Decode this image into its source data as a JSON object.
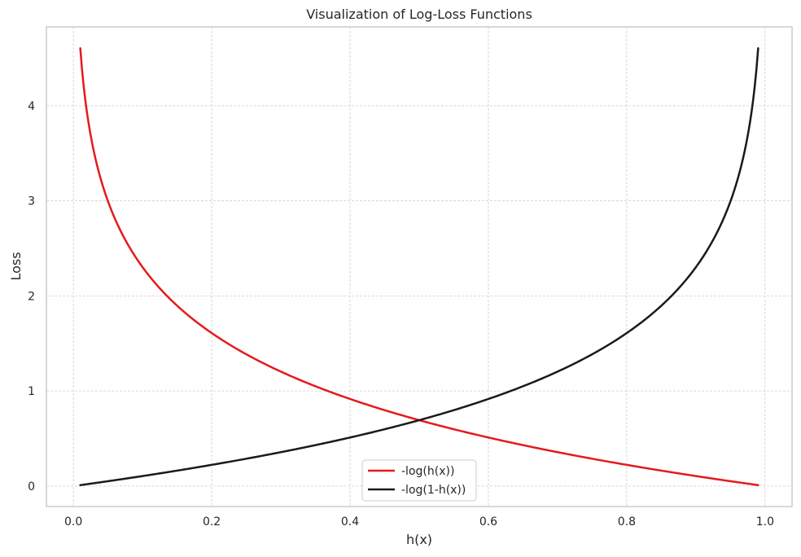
{
  "chart_data": {
    "type": "line",
    "title": "Visualization of Log-Loss Functions",
    "xlabel": "h(x)",
    "ylabel": "Loss",
    "xlim": [
      -0.039,
      1.039
    ],
    "ylim": [
      -0.215,
      4.83
    ],
    "xticks": [
      0.0,
      0.2,
      0.4,
      0.6,
      0.8,
      1.0
    ],
    "xtick_labels": [
      "0.0",
      "0.2",
      "0.4",
      "0.6",
      "0.8",
      "1.0"
    ],
    "yticks": [
      0,
      1,
      2,
      3,
      4
    ],
    "ytick_labels": [
      "0",
      "1",
      "2",
      "3",
      "4"
    ],
    "grid": true,
    "legend_location": "lower center",
    "x_range": [
      0.01,
      0.99
    ],
    "series": [
      {
        "name": "-log(h(x))",
        "color": "#e41a1c",
        "x": [
          0.01,
          0.02,
          0.03,
          0.05,
          0.075,
          0.1,
          0.15,
          0.2,
          0.25,
          0.3,
          0.35,
          0.4,
          0.45,
          0.5,
          0.55,
          0.6,
          0.65,
          0.7,
          0.75,
          0.8,
          0.85,
          0.9,
          0.95,
          0.99
        ],
        "y": [
          4.605,
          3.912,
          3.507,
          2.996,
          2.59,
          2.303,
          1.897,
          1.609,
          1.386,
          1.204,
          1.05,
          0.916,
          0.799,
          0.693,
          0.598,
          0.511,
          0.431,
          0.357,
          0.288,
          0.223,
          0.163,
          0.105,
          0.051,
          0.01
        ]
      },
      {
        "name": "-log(1-h(x))",
        "color": "#1a1a1a",
        "x": [
          0.01,
          0.05,
          0.1,
          0.15,
          0.2,
          0.25,
          0.3,
          0.35,
          0.4,
          0.45,
          0.5,
          0.55,
          0.6,
          0.65,
          0.7,
          0.75,
          0.8,
          0.85,
          0.9,
          0.925,
          0.95,
          0.97,
          0.98,
          0.99
        ],
        "y": [
          0.01,
          0.051,
          0.105,
          0.163,
          0.223,
          0.288,
          0.357,
          0.431,
          0.511,
          0.598,
          0.693,
          0.799,
          0.916,
          1.05,
          1.204,
          1.386,
          1.609,
          1.897,
          2.303,
          2.59,
          2.996,
          3.507,
          3.912,
          4.605
        ]
      }
    ]
  }
}
